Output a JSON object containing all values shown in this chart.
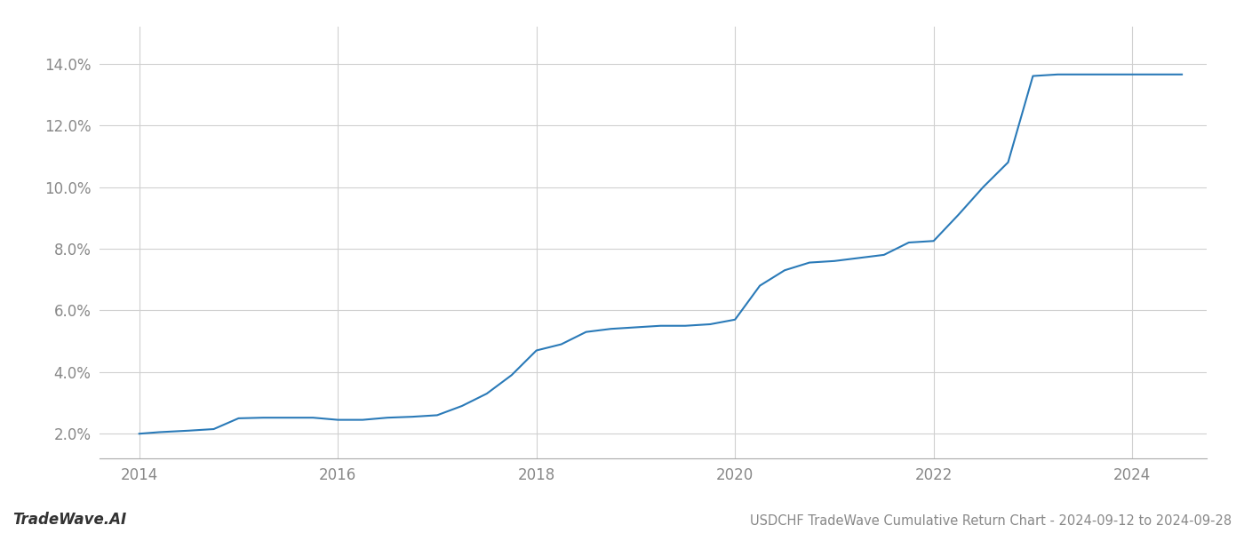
{
  "title": "USDCHF TradeWave Cumulative Return Chart - 2024-09-12 to 2024-09-28",
  "watermark": "TradeWave.AI",
  "line_color": "#2a7ab8",
  "background_color": "#ffffff",
  "grid_color": "#d0d0d0",
  "x_values": [
    2014.0,
    2014.2,
    2014.5,
    2014.75,
    2015.0,
    2015.25,
    2015.5,
    2015.75,
    2016.0,
    2016.25,
    2016.5,
    2016.75,
    2017.0,
    2017.25,
    2017.5,
    2017.75,
    2018.0,
    2018.25,
    2018.5,
    2018.75,
    2019.0,
    2019.25,
    2019.5,
    2019.75,
    2020.0,
    2020.25,
    2020.5,
    2020.75,
    2021.0,
    2021.25,
    2021.5,
    2021.75,
    2022.0,
    2022.25,
    2022.5,
    2022.75,
    2023.0,
    2023.25,
    2023.5,
    2023.75,
    2024.0,
    2024.5
  ],
  "y_values": [
    0.02,
    0.0205,
    0.021,
    0.0215,
    0.025,
    0.0252,
    0.0252,
    0.0252,
    0.0245,
    0.0245,
    0.0252,
    0.0255,
    0.026,
    0.029,
    0.033,
    0.039,
    0.047,
    0.049,
    0.053,
    0.054,
    0.0545,
    0.055,
    0.055,
    0.0555,
    0.057,
    0.068,
    0.073,
    0.0755,
    0.076,
    0.077,
    0.078,
    0.082,
    0.0825,
    0.091,
    0.1,
    0.108,
    0.136,
    0.1365,
    0.1365,
    0.1365,
    0.1365,
    0.1365
  ],
  "ylim": [
    0.012,
    0.152
  ],
  "xlim": [
    2013.6,
    2024.75
  ],
  "yticks": [
    0.02,
    0.04,
    0.06,
    0.08,
    0.1,
    0.12,
    0.14
  ],
  "xticks": [
    2014,
    2016,
    2018,
    2020,
    2022,
    2024
  ],
  "line_width": 1.5,
  "title_fontsize": 10.5,
  "tick_fontsize": 12,
  "watermark_fontsize": 12
}
